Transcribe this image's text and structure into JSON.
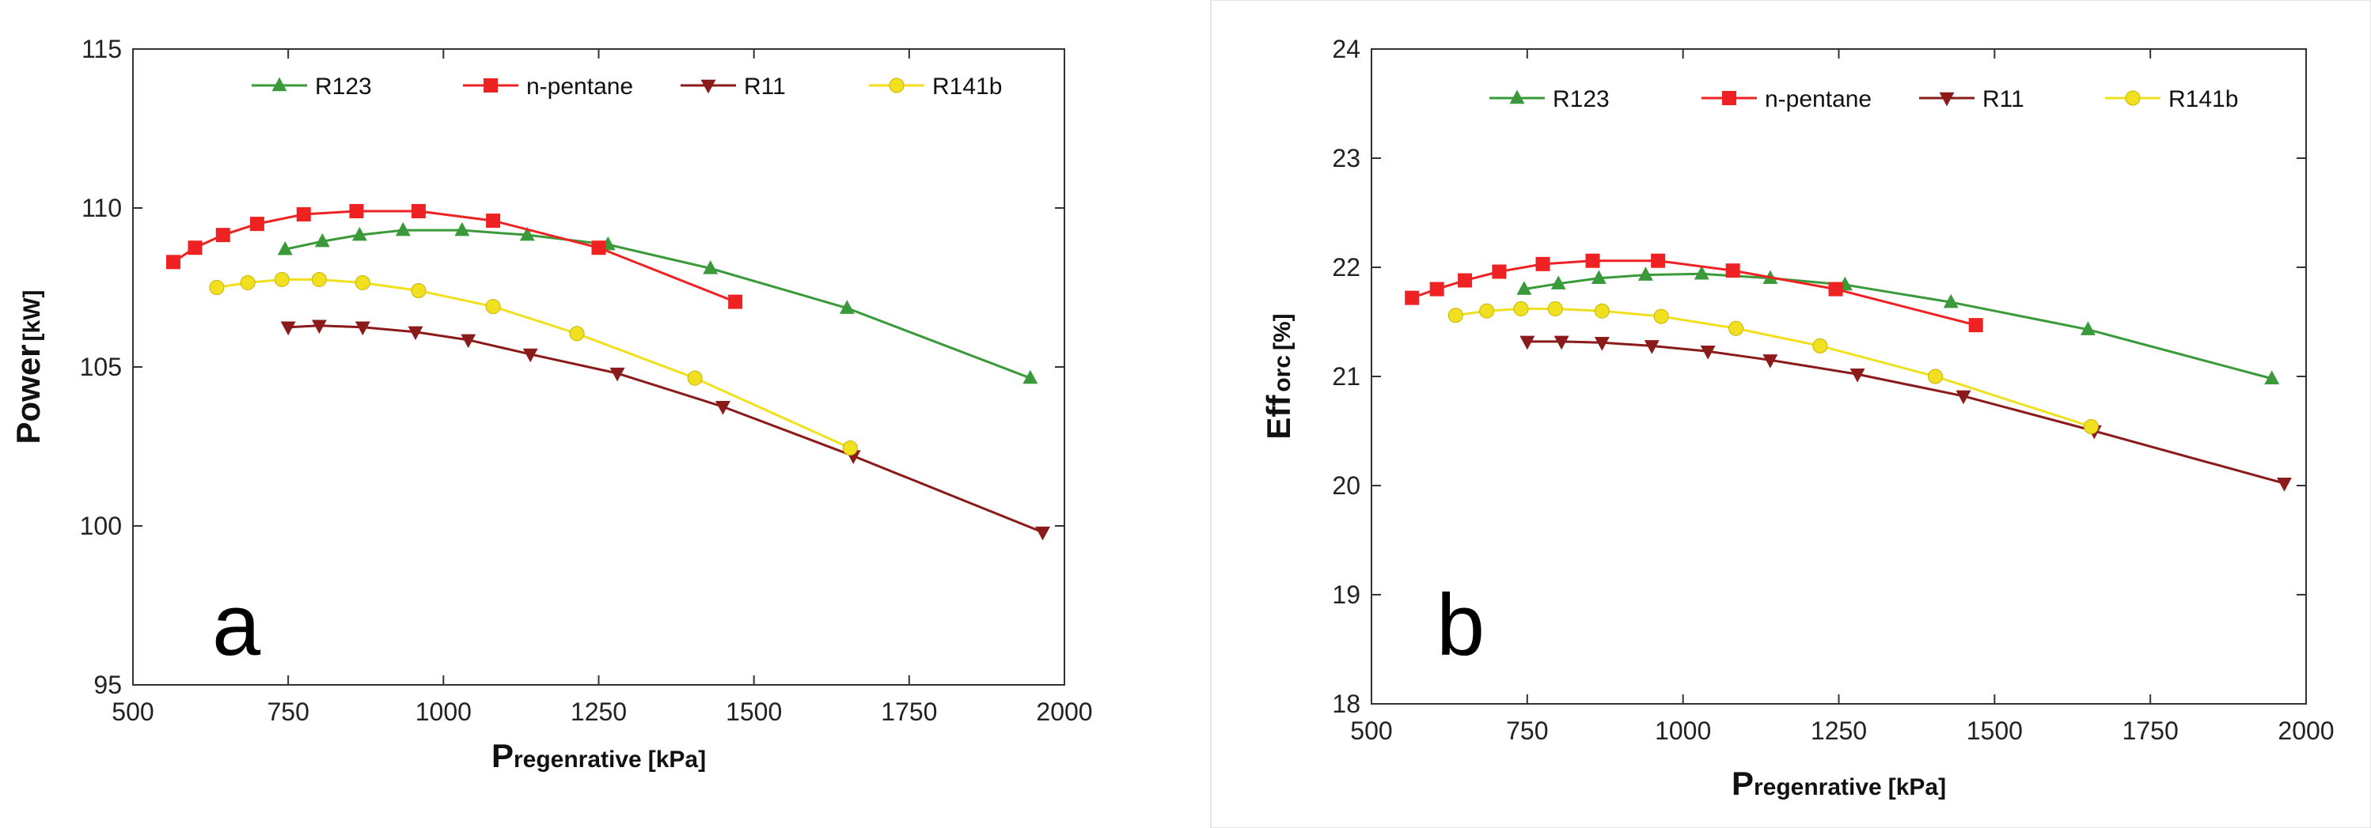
{
  "chart_data": [
    {
      "type": "line",
      "panel_label": "a",
      "xlabel": {
        "main": "P",
        "sub": "regenrative",
        "unit": "[kPa]"
      },
      "ylabel": {
        "main": "Power",
        "sub": "[kW]"
      },
      "xlim": [
        500,
        2000
      ],
      "ylim": [
        95,
        115
      ],
      "xticks": [
        500,
        750,
        1000,
        1250,
        1500,
        1750,
        2000
      ],
      "yticks": [
        95,
        100,
        105,
        110,
        115
      ],
      "legend_position": "top",
      "series": [
        {
          "name": "R123",
          "color": "#3a9a3a",
          "marker": "triangle-up",
          "x": [
            745,
            805,
            865,
            935,
            1030,
            1135,
            1265,
            1430,
            1650,
            1945
          ],
          "y": [
            108.7,
            108.95,
            109.15,
            109.3,
            109.3,
            109.15,
            108.85,
            108.1,
            106.85,
            104.65
          ]
        },
        {
          "name": "n-pentane",
          "color": "#ee2222",
          "marker": "square",
          "x": [
            565,
            600,
            645,
            700,
            775,
            860,
            960,
            1080,
            1250,
            1470
          ],
          "y": [
            108.3,
            108.75,
            109.15,
            109.5,
            109.8,
            109.9,
            109.9,
            109.6,
            108.75,
            107.05
          ]
        },
        {
          "name": "R11",
          "color": "#8b1a1a",
          "marker": "triangle-down",
          "x": [
            750,
            800,
            870,
            955,
            1040,
            1140,
            1280,
            1450,
            1660,
            1965
          ],
          "y": [
            106.25,
            106.3,
            106.25,
            106.1,
            105.85,
            105.4,
            104.8,
            103.75,
            102.2,
            99.8
          ]
        },
        {
          "name": "R141b",
          "color": "#f0e020",
          "marker": "circle",
          "x": [
            635,
            685,
            740,
            800,
            870,
            960,
            1080,
            1215,
            1405,
            1655
          ],
          "y": [
            107.5,
            107.65,
            107.75,
            107.75,
            107.65,
            107.4,
            106.9,
            106.05,
            104.65,
            102.45
          ]
        }
      ]
    },
    {
      "type": "line",
      "panel_label": "b",
      "xlabel": {
        "main": "P",
        "sub": "regenrative",
        "unit": "[kPa]"
      },
      "ylabel": {
        "main": "Eff",
        "sub": "orc",
        "unit": "[%]"
      },
      "xlim": [
        500,
        2000
      ],
      "ylim": [
        18,
        24
      ],
      "xticks": [
        500,
        750,
        1000,
        1250,
        1500,
        1750,
        2000
      ],
      "yticks": [
        18,
        19,
        20,
        21,
        22,
        23,
        24
      ],
      "legend_position": "top",
      "series": [
        {
          "name": "R123",
          "color": "#3a9a3a",
          "marker": "triangle-up",
          "x": [
            745,
            800,
            865,
            940,
            1030,
            1140,
            1260,
            1430,
            1650,
            1945
          ],
          "y": [
            21.8,
            21.85,
            21.9,
            21.93,
            21.94,
            21.9,
            21.84,
            21.68,
            21.43,
            20.98
          ]
        },
        {
          "name": "n-pentane",
          "color": "#ee2222",
          "marker": "square",
          "x": [
            565,
            605,
            650,
            705,
            775,
            855,
            960,
            1080,
            1245,
            1470
          ],
          "y": [
            21.72,
            21.8,
            21.88,
            21.96,
            22.03,
            22.06,
            22.06,
            21.97,
            21.8,
            21.47
          ]
        },
        {
          "name": "R11",
          "color": "#8b1a1a",
          "marker": "triangle-down",
          "x": [
            750,
            805,
            870,
            950,
            1040,
            1140,
            1280,
            1450,
            1660,
            1965
          ],
          "y": [
            21.32,
            21.32,
            21.31,
            21.28,
            21.23,
            21.15,
            21.02,
            20.82,
            20.5,
            20.02
          ]
        },
        {
          "name": "R141b",
          "color": "#f0e020",
          "marker": "circle",
          "x": [
            635,
            685,
            740,
            795,
            870,
            965,
            1085,
            1220,
            1405,
            1655
          ],
          "y": [
            21.56,
            21.6,
            21.62,
            21.62,
            21.6,
            21.55,
            21.44,
            21.28,
            21.0,
            20.54
          ]
        }
      ]
    }
  ]
}
